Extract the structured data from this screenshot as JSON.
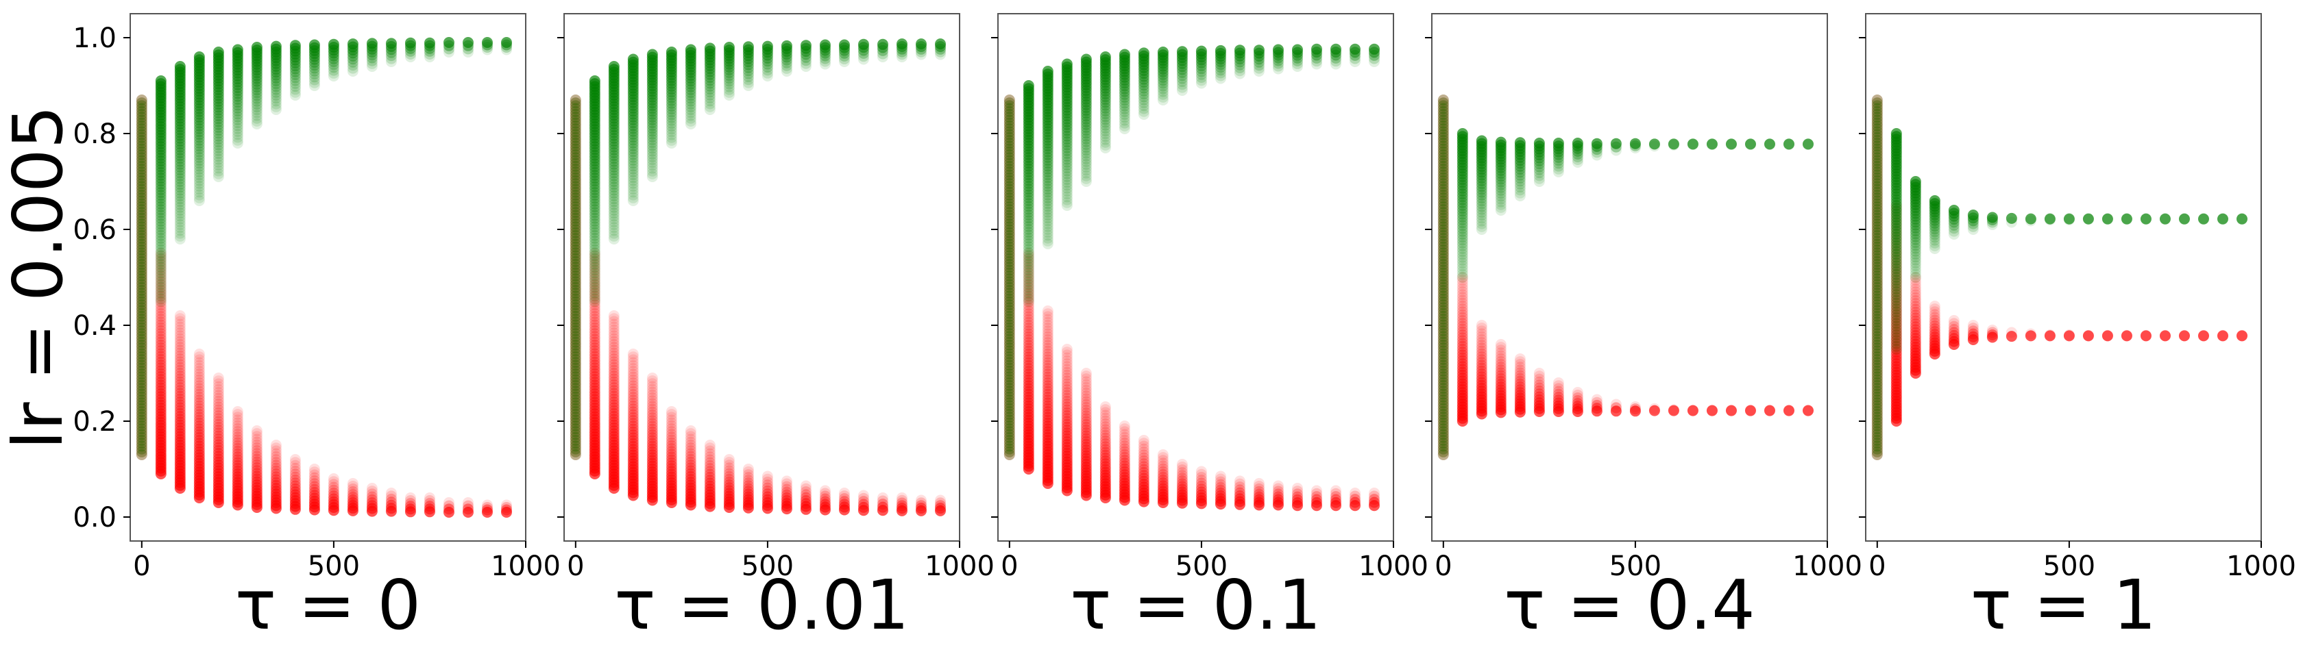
{
  "figure": {
    "row_label": "lr = 0.005"
  },
  "chart_data": [
    {
      "type": "scatter",
      "xlabel": "τ = 0",
      "xlim": [
        -30,
        1000
      ],
      "ylim": [
        -0.05,
        1.05
      ],
      "xticks": [
        "0",
        "500",
        "1000"
      ],
      "yticks": [
        "0.0",
        "0.2",
        "0.4",
        "0.6",
        "0.8",
        "1.0"
      ],
      "grid": false,
      "series": [
        {
          "color": "#008000",
          "x": [
            0,
            50,
            100,
            150,
            200,
            250,
            300,
            350,
            400,
            450,
            500,
            550,
            600,
            650,
            700,
            750,
            800,
            850,
            900,
            950
          ],
          "y_top": [
            0.87,
            0.91,
            0.94,
            0.96,
            0.97,
            0.975,
            0.98,
            0.982,
            0.984,
            0.985,
            0.986,
            0.987,
            0.988,
            0.988,
            0.989,
            0.989,
            0.99,
            0.99,
            0.99,
            0.99
          ],
          "y_bottom": [
            0.13,
            0.45,
            0.58,
            0.66,
            0.71,
            0.78,
            0.82,
            0.85,
            0.88,
            0.9,
            0.92,
            0.93,
            0.94,
            0.95,
            0.96,
            0.96,
            0.97,
            0.97,
            0.975,
            0.975
          ]
        },
        {
          "color": "#ff0000",
          "x": [
            0,
            50,
            100,
            150,
            200,
            250,
            300,
            350,
            400,
            450,
            500,
            550,
            600,
            650,
            700,
            750,
            800,
            850,
            900,
            950
          ],
          "y_top": [
            0.87,
            0.55,
            0.42,
            0.34,
            0.29,
            0.22,
            0.18,
            0.15,
            0.12,
            0.1,
            0.08,
            0.07,
            0.06,
            0.05,
            0.04,
            0.04,
            0.03,
            0.03,
            0.025,
            0.025
          ],
          "y_bottom": [
            0.13,
            0.09,
            0.06,
            0.04,
            0.03,
            0.025,
            0.02,
            0.018,
            0.016,
            0.015,
            0.014,
            0.013,
            0.012,
            0.012,
            0.011,
            0.011,
            0.01,
            0.01,
            0.01,
            0.01
          ]
        }
      ]
    },
    {
      "type": "scatter",
      "xlabel": "τ = 0.01",
      "xlim": [
        -30,
        1000
      ],
      "ylim": [
        -0.05,
        1.05
      ],
      "xticks": [
        "0",
        "500",
        "1000"
      ],
      "yticks": [
        "0.0",
        "0.2",
        "0.4",
        "0.6",
        "0.8",
        "1.0"
      ],
      "grid": false,
      "series": [
        {
          "color": "#008000",
          "x": [
            0,
            50,
            100,
            150,
            200,
            250,
            300,
            350,
            400,
            450,
            500,
            550,
            600,
            650,
            700,
            750,
            800,
            850,
            900,
            950
          ],
          "y_top": [
            0.87,
            0.91,
            0.94,
            0.955,
            0.965,
            0.97,
            0.975,
            0.978,
            0.98,
            0.981,
            0.982,
            0.983,
            0.984,
            0.985,
            0.985,
            0.986,
            0.986,
            0.987,
            0.987,
            0.987
          ],
          "y_bottom": [
            0.13,
            0.45,
            0.58,
            0.66,
            0.71,
            0.78,
            0.82,
            0.85,
            0.88,
            0.9,
            0.92,
            0.93,
            0.94,
            0.945,
            0.95,
            0.955,
            0.96,
            0.96,
            0.965,
            0.965
          ]
        },
        {
          "color": "#ff0000",
          "x": [
            0,
            50,
            100,
            150,
            200,
            250,
            300,
            350,
            400,
            450,
            500,
            550,
            600,
            650,
            700,
            750,
            800,
            850,
            900,
            950
          ],
          "y_top": [
            0.87,
            0.55,
            0.42,
            0.34,
            0.29,
            0.22,
            0.18,
            0.15,
            0.12,
            0.1,
            0.085,
            0.075,
            0.065,
            0.055,
            0.05,
            0.045,
            0.04,
            0.04,
            0.035,
            0.035
          ],
          "y_bottom": [
            0.13,
            0.09,
            0.06,
            0.045,
            0.035,
            0.03,
            0.025,
            0.022,
            0.02,
            0.019,
            0.018,
            0.017,
            0.016,
            0.015,
            0.015,
            0.014,
            0.014,
            0.013,
            0.013,
            0.013
          ]
        }
      ]
    },
    {
      "type": "scatter",
      "xlabel": "τ = 0.1",
      "xlim": [
        -30,
        1000
      ],
      "ylim": [
        -0.05,
        1.05
      ],
      "xticks": [
        "0",
        "500",
        "1000"
      ],
      "yticks": [
        "0.0",
        "0.2",
        "0.4",
        "0.6",
        "0.8",
        "1.0"
      ],
      "grid": false,
      "series": [
        {
          "color": "#008000",
          "x": [
            0,
            50,
            100,
            150,
            200,
            250,
            300,
            350,
            400,
            450,
            500,
            550,
            600,
            650,
            700,
            750,
            800,
            850,
            900,
            950
          ],
          "y_top": [
            0.87,
            0.9,
            0.93,
            0.945,
            0.955,
            0.96,
            0.965,
            0.968,
            0.97,
            0.971,
            0.972,
            0.973,
            0.974,
            0.974,
            0.975,
            0.975,
            0.976,
            0.976,
            0.976,
            0.976
          ],
          "y_bottom": [
            0.13,
            0.45,
            0.57,
            0.65,
            0.7,
            0.77,
            0.81,
            0.84,
            0.87,
            0.89,
            0.905,
            0.915,
            0.925,
            0.93,
            0.935,
            0.94,
            0.945,
            0.945,
            0.95,
            0.95
          ]
        },
        {
          "color": "#ff0000",
          "x": [
            0,
            50,
            100,
            150,
            200,
            250,
            300,
            350,
            400,
            450,
            500,
            550,
            600,
            650,
            700,
            750,
            800,
            850,
            900,
            950
          ],
          "y_top": [
            0.87,
            0.55,
            0.43,
            0.35,
            0.3,
            0.23,
            0.19,
            0.16,
            0.13,
            0.11,
            0.095,
            0.085,
            0.075,
            0.07,
            0.065,
            0.06,
            0.055,
            0.055,
            0.05,
            0.05
          ],
          "y_bottom": [
            0.13,
            0.1,
            0.07,
            0.055,
            0.045,
            0.04,
            0.035,
            0.032,
            0.03,
            0.029,
            0.028,
            0.027,
            0.026,
            0.025,
            0.025,
            0.024,
            0.024,
            0.024,
            0.024,
            0.024
          ]
        }
      ]
    },
    {
      "type": "scatter",
      "xlabel": "τ = 0.4",
      "xlim": [
        -30,
        1000
      ],
      "ylim": [
        -0.05,
        1.05
      ],
      "xticks": [
        "0",
        "500",
        "1000"
      ],
      "yticks": [
        "0.0",
        "0.2",
        "0.4",
        "0.6",
        "0.8",
        "1.0"
      ],
      "grid": false,
      "series": [
        {
          "color": "#008000",
          "x": [
            0,
            50,
            100,
            150,
            200,
            250,
            300,
            350,
            400,
            450,
            500,
            550,
            600,
            650,
            700,
            750,
            800,
            850,
            900,
            950
          ],
          "y_top": [
            0.87,
            0.8,
            0.785,
            0.782,
            0.781,
            0.78,
            0.78,
            0.78,
            0.779,
            0.779,
            0.779,
            0.778,
            0.778,
            0.778,
            0.778,
            0.778,
            0.778,
            0.778,
            0.778,
            0.778
          ],
          "y_bottom": [
            0.13,
            0.5,
            0.6,
            0.64,
            0.67,
            0.7,
            0.72,
            0.74,
            0.755,
            0.765,
            0.77,
            0.774,
            0.776,
            0.777,
            0.777,
            0.777,
            0.777,
            0.777,
            0.777,
            0.777
          ]
        },
        {
          "color": "#ff0000",
          "x": [
            0,
            50,
            100,
            150,
            200,
            250,
            300,
            350,
            400,
            450,
            500,
            550,
            600,
            650,
            700,
            750,
            800,
            850,
            900,
            950
          ],
          "y_top": [
            0.87,
            0.5,
            0.4,
            0.36,
            0.33,
            0.3,
            0.28,
            0.26,
            0.245,
            0.235,
            0.23,
            0.226,
            0.224,
            0.223,
            0.223,
            0.223,
            0.223,
            0.223,
            0.223,
            0.223
          ],
          "y_bottom": [
            0.13,
            0.2,
            0.215,
            0.218,
            0.219,
            0.22,
            0.22,
            0.22,
            0.221,
            0.221,
            0.221,
            0.222,
            0.222,
            0.222,
            0.222,
            0.222,
            0.222,
            0.222,
            0.222,
            0.222
          ]
        }
      ]
    },
    {
      "type": "scatter",
      "xlabel": "τ = 1",
      "xlim": [
        -30,
        1000
      ],
      "ylim": [
        -0.05,
        1.05
      ],
      "xticks": [
        "0",
        "500",
        "1000"
      ],
      "yticks": [
        "0.0",
        "0.2",
        "0.4",
        "0.6",
        "0.8",
        "1.0"
      ],
      "grid": false,
      "series": [
        {
          "color": "#008000",
          "x": [
            0,
            50,
            100,
            150,
            200,
            250,
            300,
            350,
            400,
            450,
            500,
            550,
            600,
            650,
            700,
            750,
            800,
            850,
            900,
            950
          ],
          "y_top": [
            0.87,
            0.8,
            0.7,
            0.66,
            0.64,
            0.63,
            0.625,
            0.623,
            0.622,
            0.622,
            0.622,
            0.622,
            0.622,
            0.622,
            0.622,
            0.622,
            0.622,
            0.622,
            0.622,
            0.622
          ],
          "y_bottom": [
            0.13,
            0.35,
            0.5,
            0.56,
            0.59,
            0.6,
            0.61,
            0.615,
            0.618,
            0.62,
            0.62,
            0.621,
            0.621,
            0.621,
            0.621,
            0.621,
            0.621,
            0.621,
            0.621,
            0.621
          ]
        },
        {
          "color": "#ff0000",
          "x": [
            0,
            50,
            100,
            150,
            200,
            250,
            300,
            350,
            400,
            450,
            500,
            550,
            600,
            650,
            700,
            750,
            800,
            850,
            900,
            950
          ],
          "y_top": [
            0.87,
            0.65,
            0.5,
            0.44,
            0.41,
            0.4,
            0.39,
            0.385,
            0.382,
            0.38,
            0.38,
            0.379,
            0.379,
            0.379,
            0.379,
            0.379,
            0.379,
            0.379,
            0.379,
            0.379
          ],
          "y_bottom": [
            0.13,
            0.2,
            0.3,
            0.34,
            0.36,
            0.37,
            0.375,
            0.377,
            0.378,
            0.378,
            0.378,
            0.378,
            0.378,
            0.378,
            0.378,
            0.378,
            0.378,
            0.378,
            0.378,
            0.378
          ]
        }
      ]
    }
  ]
}
